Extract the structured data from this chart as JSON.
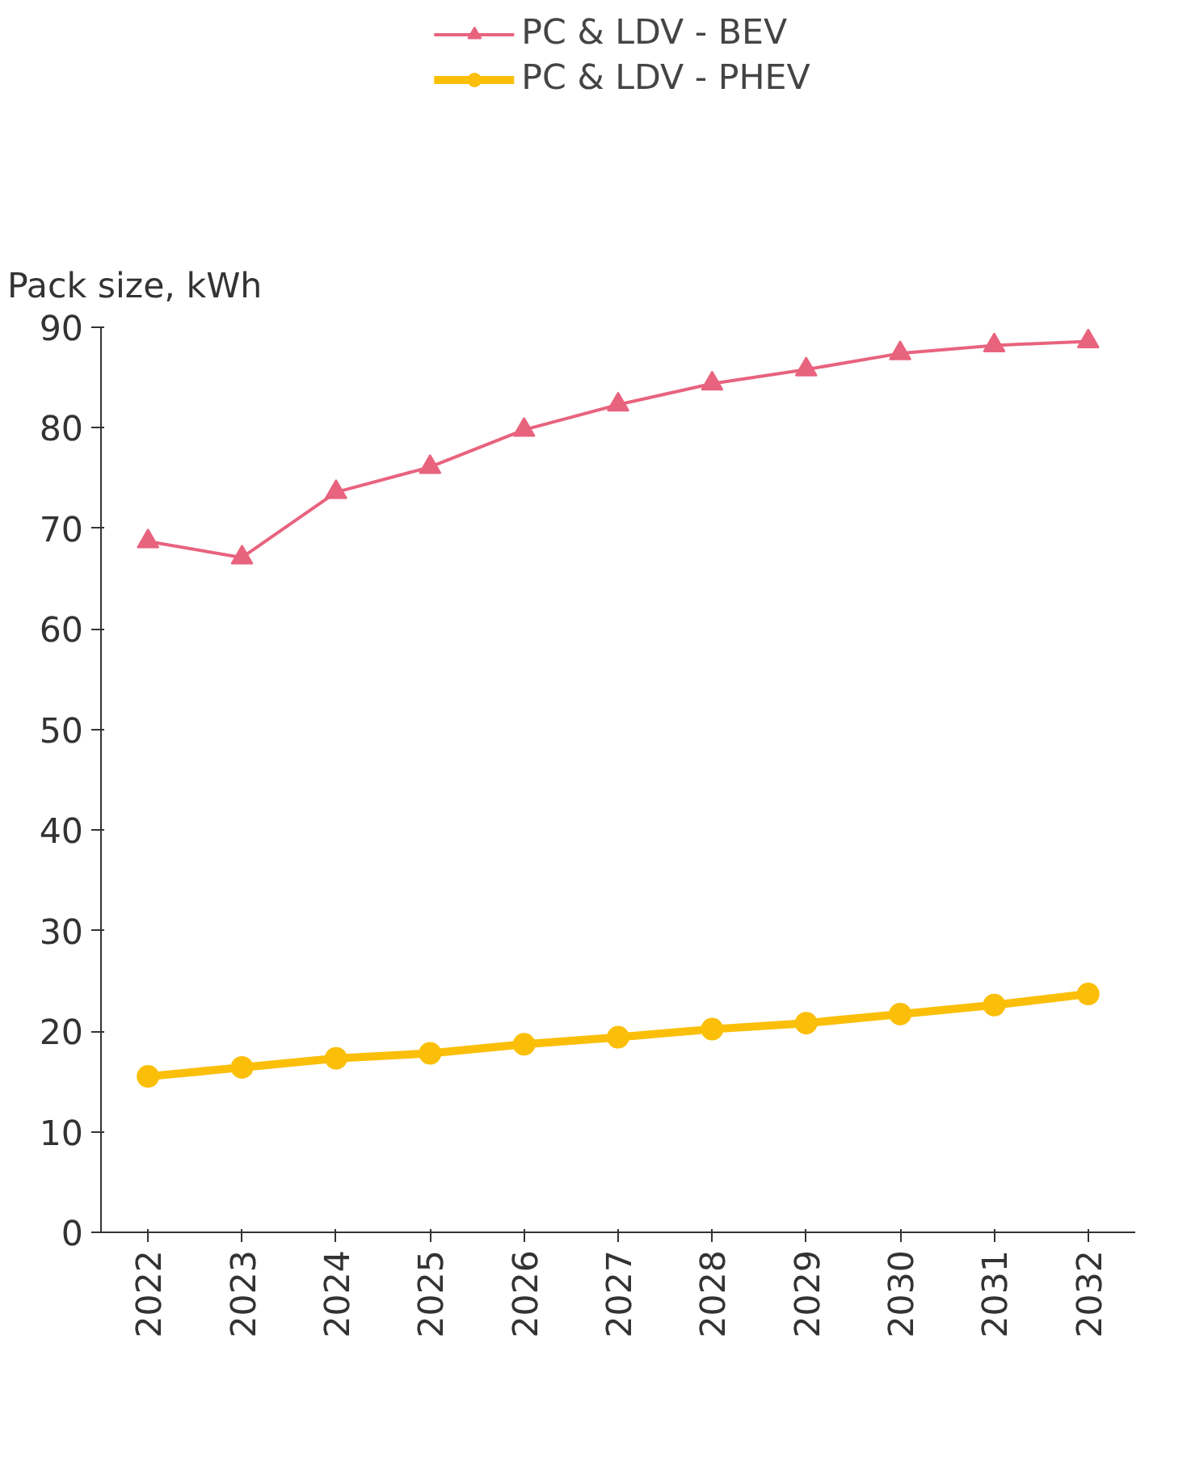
{
  "chart_data": {
    "type": "line",
    "ylabel": "Pack size, kWh",
    "categories": [
      "2022",
      "2023",
      "2024",
      "2025",
      "2026",
      "2027",
      "2028",
      "2029",
      "2030",
      "2031",
      "2032"
    ],
    "series": [
      {
        "name": "PC & LDV - BEV",
        "color": "#e8637e",
        "marker": "triangle",
        "values": [
          68.7,
          67.1,
          73.6,
          76.1,
          79.8,
          82.3,
          84.4,
          85.8,
          87.4,
          88.2,
          88.6
        ]
      },
      {
        "name": "PC & LDV - PHEV",
        "color": "#fbbf09",
        "marker": "circle",
        "values": [
          15.5,
          16.4,
          17.3,
          17.8,
          18.7,
          19.4,
          20.2,
          20.8,
          21.7,
          22.6,
          23.7
        ]
      }
    ],
    "ylim": [
      0,
      90
    ],
    "yticks": [
      0,
      10,
      20,
      30,
      40,
      50,
      60,
      70,
      80,
      90
    ],
    "grid": false,
    "legend": "top"
  }
}
